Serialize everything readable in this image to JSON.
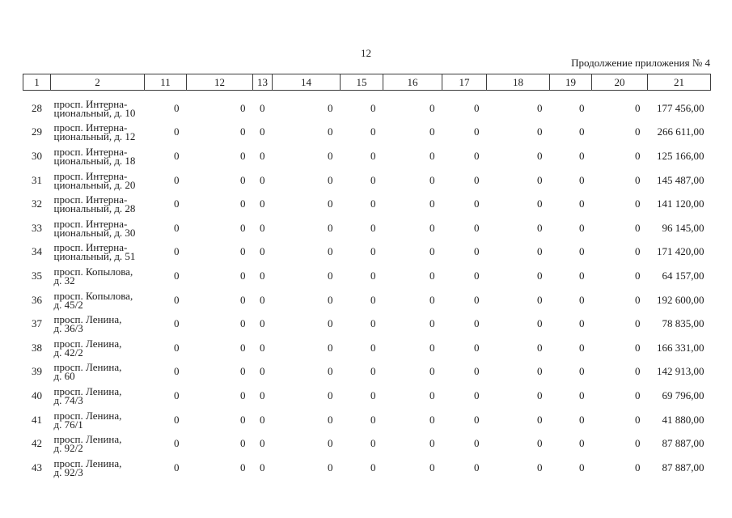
{
  "page": {
    "number": "12",
    "header_right": "Продолжение приложения № 4"
  },
  "colors": {
    "text": "#1b1b1b",
    "border": "#3d3d3d",
    "page_background": "#ffffff"
  },
  "table": {
    "columns": [
      "1",
      "2",
      "11",
      "12",
      "13",
      "14",
      "15",
      "16",
      "17",
      "18",
      "19",
      "20",
      "21"
    ],
    "rows": [
      {
        "num": "28",
        "address": "просп. Интерна-\nциональный, д. 10",
        "values": [
          "0",
          "0",
          "0",
          "0",
          "0",
          "0",
          "0",
          "0",
          "0",
          "0"
        ],
        "total": "177 456,00"
      },
      {
        "num": "29",
        "address": "просп. Интерна-\nциональный, д. 12",
        "values": [
          "0",
          "0",
          "0",
          "0",
          "0",
          "0",
          "0",
          "0",
          "0",
          "0"
        ],
        "total": "266 611,00"
      },
      {
        "num": "30",
        "address": "просп. Интерна-\nциональный, д. 18",
        "values": [
          "0",
          "0",
          "0",
          "0",
          "0",
          "0",
          "0",
          "0",
          "0",
          "0"
        ],
        "total": "125 166,00"
      },
      {
        "num": "31",
        "address": "просп. Интерна-\nциональный, д. 20",
        "values": [
          "0",
          "0",
          "0",
          "0",
          "0",
          "0",
          "0",
          "0",
          "0",
          "0"
        ],
        "total": "145 487,00"
      },
      {
        "num": "32",
        "address": "просп. Интерна-\nциональный, д. 28",
        "values": [
          "0",
          "0",
          "0",
          "0",
          "0",
          "0",
          "0",
          "0",
          "0",
          "0"
        ],
        "total": "141 120,00"
      },
      {
        "num": "33",
        "address": "просп. Интерна-\nциональный, д. 30",
        "values": [
          "0",
          "0",
          "0",
          "0",
          "0",
          "0",
          "0",
          "0",
          "0",
          "0"
        ],
        "total": "96 145,00"
      },
      {
        "num": "34",
        "address": "просп. Интерна-\nциональный, д. 51",
        "values": [
          "0",
          "0",
          "0",
          "0",
          "0",
          "0",
          "0",
          "0",
          "0",
          "0"
        ],
        "total": "171 420,00"
      },
      {
        "num": "35",
        "address": "просп. Копылова,\nд. 32",
        "values": [
          "0",
          "0",
          "0",
          "0",
          "0",
          "0",
          "0",
          "0",
          "0",
          "0"
        ],
        "total": "64 157,00"
      },
      {
        "num": "36",
        "address": "просп. Копылова,\nд. 45/2",
        "values": [
          "0",
          "0",
          "0",
          "0",
          "0",
          "0",
          "0",
          "0",
          "0",
          "0"
        ],
        "total": "192 600,00"
      },
      {
        "num": "37",
        "address": "просп. Ленина,\nд. 36/3",
        "values": [
          "0",
          "0",
          "0",
          "0",
          "0",
          "0",
          "0",
          "0",
          "0",
          "0"
        ],
        "total": "78 835,00"
      },
      {
        "num": "38",
        "address": "просп. Ленина,\nд. 42/2",
        "values": [
          "0",
          "0",
          "0",
          "0",
          "0",
          "0",
          "0",
          "0",
          "0",
          "0"
        ],
        "total": "166 331,00"
      },
      {
        "num": "39",
        "address": "просп. Ленина,\nд. 60",
        "values": [
          "0",
          "0",
          "0",
          "0",
          "0",
          "0",
          "0",
          "0",
          "0",
          "0"
        ],
        "total": "142 913,00"
      },
      {
        "num": "40",
        "address": "просп. Ленина,\nд. 74/3",
        "values": [
          "0",
          "0",
          "0",
          "0",
          "0",
          "0",
          "0",
          "0",
          "0",
          "0"
        ],
        "total": "69 796,00"
      },
      {
        "num": "41",
        "address": "просп. Ленина,\nд. 76/1",
        "values": [
          "0",
          "0",
          "0",
          "0",
          "0",
          "0",
          "0",
          "0",
          "0",
          "0"
        ],
        "total": "41 880,00"
      },
      {
        "num": "42",
        "address": "просп. Ленина,\nд. 92/2",
        "values": [
          "0",
          "0",
          "0",
          "0",
          "0",
          "0",
          "0",
          "0",
          "0",
          "0"
        ],
        "total": "87 887,00"
      },
      {
        "num": "43",
        "address": "просп. Ленина,\nд. 92/3",
        "values": [
          "0",
          "0",
          "0",
          "0",
          "0",
          "0",
          "0",
          "0",
          "0",
          "0"
        ],
        "total": "87 887,00"
      }
    ]
  }
}
